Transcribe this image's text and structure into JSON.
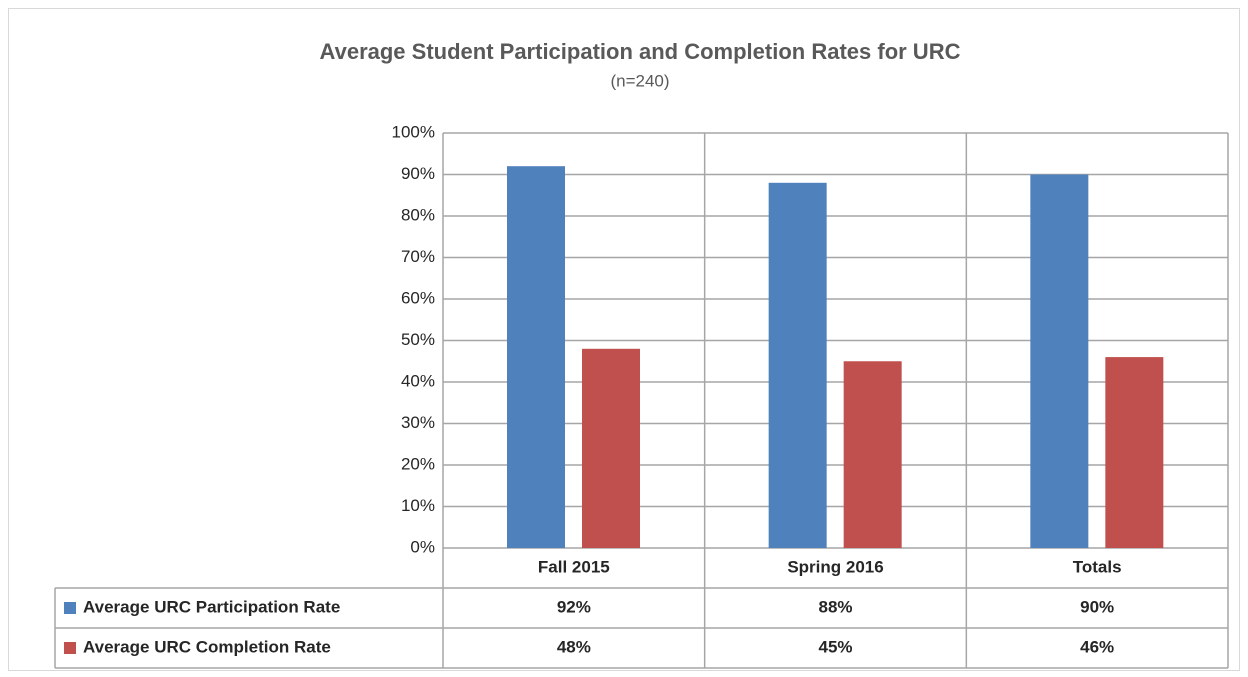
{
  "chart_data": {
    "type": "bar",
    "title": "Average Student Participation and Completion Rates for URC",
    "subtitle": "(n=240)",
    "categories": [
      "Fall 2015",
      "Spring 2016",
      "Totals"
    ],
    "series": [
      {
        "name": "Average URC Participation Rate",
        "color": "#4f81bd",
        "values": [
          92,
          88,
          90
        ],
        "value_labels": [
          "92%",
          "88%",
          "90%"
        ]
      },
      {
        "name": "Average URC Completion Rate",
        "color": "#c0504d",
        "values": [
          48,
          45,
          46
        ],
        "value_labels": [
          "48%",
          "45%",
          "46%"
        ]
      }
    ],
    "ylim": [
      0,
      100
    ],
    "yticks": [
      {
        "value": 0,
        "label": "0%"
      },
      {
        "value": 10,
        "label": "10%"
      },
      {
        "value": 20,
        "label": "20%"
      },
      {
        "value": 30,
        "label": "30%"
      },
      {
        "value": 40,
        "label": "40%"
      },
      {
        "value": 50,
        "label": "50%"
      },
      {
        "value": 60,
        "label": "60%"
      },
      {
        "value": 70,
        "label": "70%"
      },
      {
        "value": 80,
        "label": "80%"
      },
      {
        "value": 90,
        "label": "90%"
      },
      {
        "value": 100,
        "label": "100%"
      }
    ],
    "grid": true
  }
}
